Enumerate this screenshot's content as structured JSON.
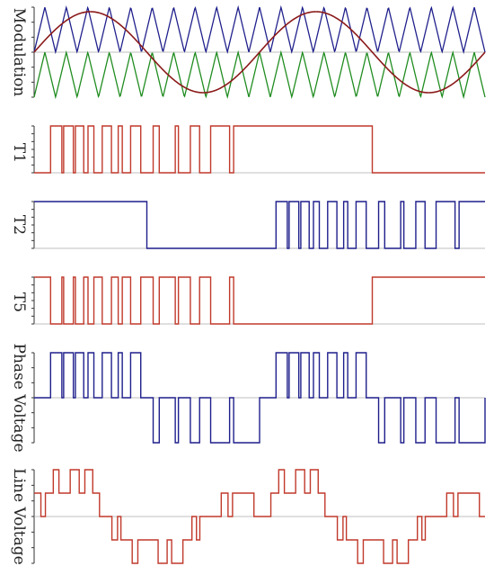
{
  "colors": {
    "carrier_upper": "#1f1f8c",
    "carrier_lower": "#1f8c1f",
    "reference": "#8b1a1a",
    "t1": "#c0392b",
    "t2": "#1f1f8c",
    "t5": "#c0392b",
    "phase": "#1f1f8c",
    "line": "#c0392b",
    "zero_line": "#aaaaaa",
    "axis": "#333333"
  },
  "chart_data": [
    {
      "type": "line",
      "id": "modulation",
      "ylabel": "Modulation",
      "title": "",
      "xlabel": "",
      "xlim": [
        0,
        2
      ],
      "ylim": [
        -1,
        1
      ],
      "carrier_periods_per_cycle": 10.5,
      "series": [
        {
          "kind": "carrier_upper",
          "expr": "triangle 0..1"
        },
        {
          "kind": "carrier_lower",
          "expr": "triangle -1..0"
        },
        {
          "kind": "reference",
          "expr": "0.9*sin(2*pi*x)"
        }
      ]
    },
    {
      "type": "line",
      "id": "t1",
      "ylabel": "T1",
      "title": "",
      "xlabel": "",
      "xlim": [
        0,
        2
      ],
      "ylim": [
        0,
        1
      ],
      "step_points": [
        [
          0,
          0
        ],
        [
          0.073,
          1
        ],
        [
          0.123,
          0
        ],
        [
          0.131,
          1
        ],
        [
          0.174,
          0
        ],
        [
          0.183,
          1
        ],
        [
          0.22,
          0
        ],
        [
          0.239,
          1
        ],
        [
          0.265,
          0
        ],
        [
          0.302,
          1
        ],
        [
          0.343,
          0
        ],
        [
          0.373,
          1
        ],
        [
          0.391,
          0
        ],
        [
          0.428,
          1
        ],
        [
          0.473,
          0
        ],
        [
          0.528,
          1
        ],
        [
          0.555,
          0
        ],
        [
          0.626,
          1
        ],
        [
          0.64,
          0
        ],
        [
          0.693,
          1
        ],
        [
          0.734,
          0
        ],
        [
          0.783,
          1
        ],
        [
          0.867,
          0
        ],
        [
          0.885,
          1
        ],
        [
          1.0,
          1
        ],
        [
          1.0,
          1
        ],
        [
          1.5,
          0
        ],
        [
          2.0,
          0
        ]
      ]
    },
    {
      "type": "line",
      "id": "t2",
      "ylabel": "T2",
      "title": "",
      "xlabel": "",
      "xlim": [
        0,
        2
      ],
      "ylim": [
        0,
        1
      ],
      "step_points": [
        [
          0,
          1
        ],
        [
          0.5,
          0
        ],
        [
          1.0,
          0
        ],
        [
          1.073,
          1
        ],
        [
          1.123,
          0
        ],
        [
          1.131,
          1
        ],
        [
          1.174,
          0
        ],
        [
          1.183,
          1
        ],
        [
          1.22,
          0
        ],
        [
          1.239,
          1
        ],
        [
          1.265,
          0
        ],
        [
          1.302,
          1
        ],
        [
          1.343,
          0
        ],
        [
          1.373,
          1
        ],
        [
          1.391,
          0
        ],
        [
          1.428,
          1
        ],
        [
          1.473,
          0
        ],
        [
          1.528,
          1
        ],
        [
          1.555,
          0
        ],
        [
          1.626,
          1
        ],
        [
          1.64,
          0
        ],
        [
          1.693,
          1
        ],
        [
          1.734,
          0
        ],
        [
          1.783,
          1
        ],
        [
          1.867,
          0
        ],
        [
          1.885,
          1
        ],
        [
          2.0,
          1
        ]
      ]
    },
    {
      "type": "line",
      "id": "t5",
      "ylabel": "T5",
      "title": "",
      "xlabel": "",
      "xlim": [
        0,
        2
      ],
      "ylim": [
        0,
        1
      ],
      "step_points": [
        [
          0,
          1
        ],
        [
          0.073,
          0
        ],
        [
          0.123,
          1
        ],
        [
          0.131,
          0
        ],
        [
          0.174,
          1
        ],
        [
          0.183,
          0
        ],
        [
          0.22,
          1
        ],
        [
          0.239,
          0
        ],
        [
          0.265,
          1
        ],
        [
          0.302,
          0
        ],
        [
          0.343,
          1
        ],
        [
          0.373,
          0
        ],
        [
          0.391,
          1
        ],
        [
          0.428,
          0
        ],
        [
          0.473,
          1
        ],
        [
          0.528,
          0
        ],
        [
          0.555,
          1
        ],
        [
          0.626,
          0
        ],
        [
          0.64,
          1
        ],
        [
          0.693,
          0
        ],
        [
          0.734,
          1
        ],
        [
          0.783,
          0
        ],
        [
          0.867,
          1
        ],
        [
          0.885,
          0
        ],
        [
          1.0,
          0
        ],
        [
          1.5,
          1
        ],
        [
          2.0,
          1
        ]
      ]
    },
    {
      "type": "line",
      "id": "phase",
      "ylabel": "Phase Voltage",
      "title": "",
      "xlabel": "",
      "xlim": [
        0,
        2
      ],
      "ylim": [
        -1,
        1
      ],
      "step_points": [
        [
          0,
          0
        ],
        [
          0.073,
          1
        ],
        [
          0.123,
          0
        ],
        [
          0.131,
          1
        ],
        [
          0.174,
          0
        ],
        [
          0.183,
          1
        ],
        [
          0.22,
          0
        ],
        [
          0.239,
          1
        ],
        [
          0.265,
          0
        ],
        [
          0.302,
          1
        ],
        [
          0.343,
          0
        ],
        [
          0.373,
          1
        ],
        [
          0.391,
          0
        ],
        [
          0.428,
          1
        ],
        [
          0.473,
          0
        ],
        [
          0.528,
          -1
        ],
        [
          0.555,
          0
        ],
        [
          0.626,
          -1
        ],
        [
          0.64,
          0
        ],
        [
          0.693,
          -1
        ],
        [
          0.734,
          0
        ],
        [
          0.783,
          -1
        ],
        [
          0.867,
          0
        ],
        [
          0.885,
          -1
        ],
        [
          1.0,
          0
        ],
        [
          1.073,
          1
        ],
        [
          1.123,
          0
        ],
        [
          1.131,
          1
        ],
        [
          1.174,
          0
        ],
        [
          1.183,
          1
        ],
        [
          1.22,
          0
        ],
        [
          1.239,
          1
        ],
        [
          1.265,
          0
        ],
        [
          1.302,
          1
        ],
        [
          1.343,
          0
        ],
        [
          1.373,
          1
        ],
        [
          1.391,
          0
        ],
        [
          1.428,
          1
        ],
        [
          1.473,
          0
        ],
        [
          1.528,
          -1
        ],
        [
          1.555,
          0
        ],
        [
          1.626,
          -1
        ],
        [
          1.64,
          0
        ],
        [
          1.693,
          -1
        ],
        [
          1.734,
          0
        ],
        [
          1.783,
          -1
        ],
        [
          1.867,
          0
        ],
        [
          1.885,
          -1
        ],
        [
          2.0,
          0
        ]
      ]
    },
    {
      "type": "line",
      "id": "line",
      "ylabel": "Line Voltage",
      "title": "",
      "xlabel": "",
      "xlim": [
        0,
        2
      ],
      "ylim": [
        -2,
        2
      ],
      "step_points": [
        [
          0,
          1
        ],
        [
          0.03,
          0
        ],
        [
          0.05,
          1
        ],
        [
          0.085,
          2
        ],
        [
          0.11,
          1
        ],
        [
          0.16,
          2
        ],
        [
          0.2,
          1
        ],
        [
          0.225,
          2
        ],
        [
          0.26,
          1
        ],
        [
          0.29,
          0
        ],
        [
          0.33,
          0
        ],
        [
          0.345,
          -1
        ],
        [
          0.37,
          0
        ],
        [
          0.385,
          -1
        ],
        [
          0.435,
          -2
        ],
        [
          0.46,
          -1
        ],
        [
          0.5,
          -1
        ],
        [
          0.55,
          -2
        ],
        [
          0.59,
          -1
        ],
        [
          0.61,
          -2
        ],
        [
          0.66,
          -1
        ],
        [
          0.7,
          0
        ],
        [
          0.72,
          -1
        ],
        [
          0.735,
          0
        ],
        [
          0.8,
          0
        ],
        [
          0.83,
          1
        ],
        [
          0.86,
          0
        ],
        [
          0.88,
          1
        ],
        [
          0.94,
          1
        ],
        [
          0.975,
          0
        ],
        [
          1.0,
          0
        ],
        [
          1.03,
          0
        ],
        [
          1.05,
          1
        ],
        [
          1.085,
          2
        ],
        [
          1.11,
          1
        ],
        [
          1.16,
          2
        ],
        [
          1.2,
          1
        ],
        [
          1.225,
          2
        ],
        [
          1.26,
          1
        ],
        [
          1.29,
          0
        ],
        [
          1.33,
          0
        ],
        [
          1.345,
          -1
        ],
        [
          1.37,
          0
        ],
        [
          1.385,
          -1
        ],
        [
          1.435,
          -2
        ],
        [
          1.46,
          -1
        ],
        [
          1.5,
          -1
        ],
        [
          1.55,
          -2
        ],
        [
          1.59,
          -1
        ],
        [
          1.61,
          -2
        ],
        [
          1.66,
          -1
        ],
        [
          1.7,
          0
        ],
        [
          1.72,
          -1
        ],
        [
          1.735,
          0
        ],
        [
          1.8,
          0
        ],
        [
          1.83,
          1
        ],
        [
          1.86,
          0
        ],
        [
          1.88,
          1
        ],
        [
          1.94,
          1
        ],
        [
          1.975,
          0
        ],
        [
          2.0,
          0
        ]
      ]
    }
  ]
}
